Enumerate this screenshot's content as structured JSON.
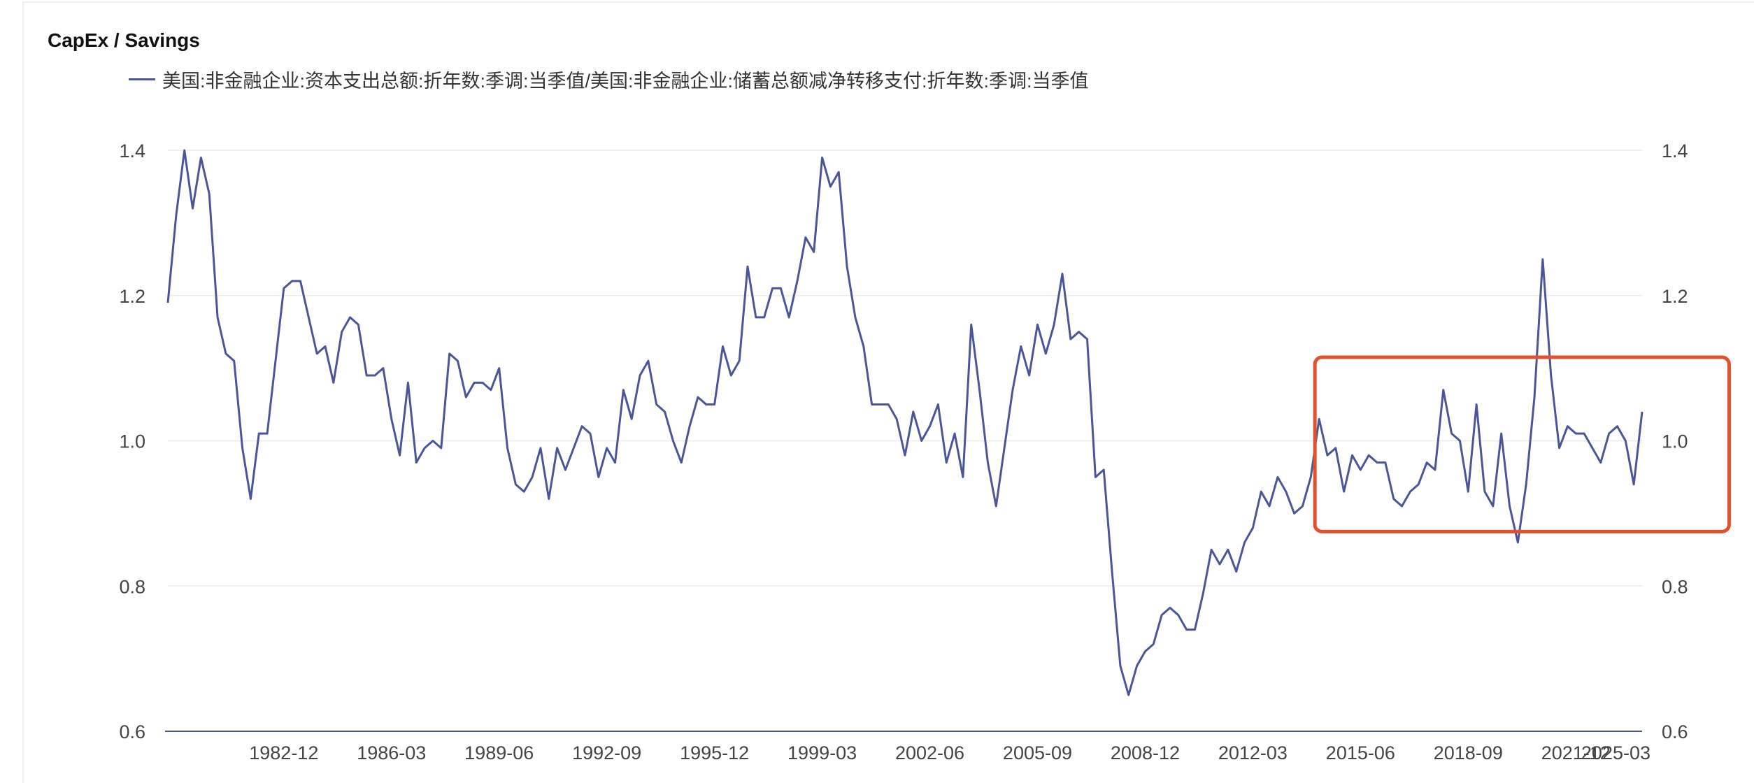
{
  "chart_data": {
    "type": "line",
    "title": "CapEx / Savings",
    "series": [
      {
        "name": "美国:非金融企业:资本支出总额:折年数:季调:当季值/美国:非金融企业:储蓄总额减净转移支付:折年数:季调:当季值",
        "color": "#4a5699",
        "values": [
          1.19,
          1.31,
          1.4,
          1.32,
          1.39,
          1.34,
          1.17,
          1.12,
          1.11,
          0.99,
          0.92,
          1.01,
          1.01,
          1.11,
          1.21,
          1.22,
          1.22,
          1.17,
          1.12,
          1.13,
          1.08,
          1.15,
          1.17,
          1.16,
          1.09,
          1.09,
          1.1,
          1.03,
          0.98,
          1.08,
          0.97,
          0.99,
          1.0,
          0.99,
          1.12,
          1.11,
          1.06,
          1.08,
          1.08,
          1.07,
          1.1,
          0.99,
          0.94,
          0.93,
          0.95,
          0.99,
          0.92,
          0.99,
          0.96,
          0.99,
          1.02,
          1.01,
          0.95,
          0.99,
          0.97,
          1.07,
          1.03,
          1.09,
          1.11,
          1.05,
          1.04,
          1.0,
          0.97,
          1.02,
          1.06,
          1.05,
          1.05,
          1.13,
          1.09,
          1.11,
          1.24,
          1.17,
          1.17,
          1.21,
          1.21,
          1.17,
          1.22,
          1.28,
          1.26,
          1.39,
          1.35,
          1.37,
          1.24,
          1.17,
          1.13,
          1.05,
          1.05,
          1.05,
          1.03,
          0.98,
          1.04,
          1.0,
          1.02,
          1.05,
          0.97,
          1.01,
          0.95,
          1.16,
          1.07,
          0.97,
          0.91,
          0.99,
          1.07,
          1.13,
          1.09,
          1.16,
          1.12,
          1.16,
          1.23,
          1.14,
          1.15,
          1.14,
          0.95,
          0.96,
          0.82,
          0.69,
          0.65,
          0.69,
          0.71,
          0.72,
          0.76,
          0.77,
          0.76,
          0.74,
          0.74,
          0.79,
          0.85,
          0.83,
          0.85,
          0.82,
          0.86,
          0.88,
          0.93,
          0.91,
          0.95,
          0.93,
          0.9,
          0.91,
          0.95,
          1.03,
          0.98,
          0.99,
          0.93,
          0.98,
          0.96,
          0.98,
          0.97,
          0.97,
          0.92,
          0.91,
          0.93,
          0.94,
          0.97,
          0.96,
          1.07,
          1.01,
          1.0,
          0.93,
          1.05,
          0.93,
          0.91,
          1.01,
          0.91,
          0.86,
          0.94,
          1.06,
          1.25,
          1.09,
          0.99,
          1.02,
          1.01,
          1.01,
          0.99,
          0.97,
          1.01,
          1.02,
          1.0,
          0.94,
          1.04
        ]
      }
    ],
    "x_ticks": [
      "1982-12",
      "1986-03",
      "1989-06",
      "1992-09",
      "1995-12",
      "1999-03",
      "2002-06",
      "2005-09",
      "2008-12",
      "2012-03",
      "2015-06",
      "2018-09",
      "2021-12",
      "2025-03"
    ],
    "ylim": [
      0.6,
      1.4
    ],
    "y_ticks": [
      0.6,
      0.8,
      1.0,
      1.2,
      1.4
    ],
    "y_tick_labels": [
      "0.6",
      "0.8",
      "1.0",
      "1.2",
      "1.4"
    ],
    "grid": true,
    "legend_position": "top-left",
    "annotation": {
      "type": "highlight-box",
      "x_range_index": [
        139,
        188
      ],
      "y_range": [
        0.875,
        1.115
      ],
      "color": "#e2512e"
    }
  }
}
